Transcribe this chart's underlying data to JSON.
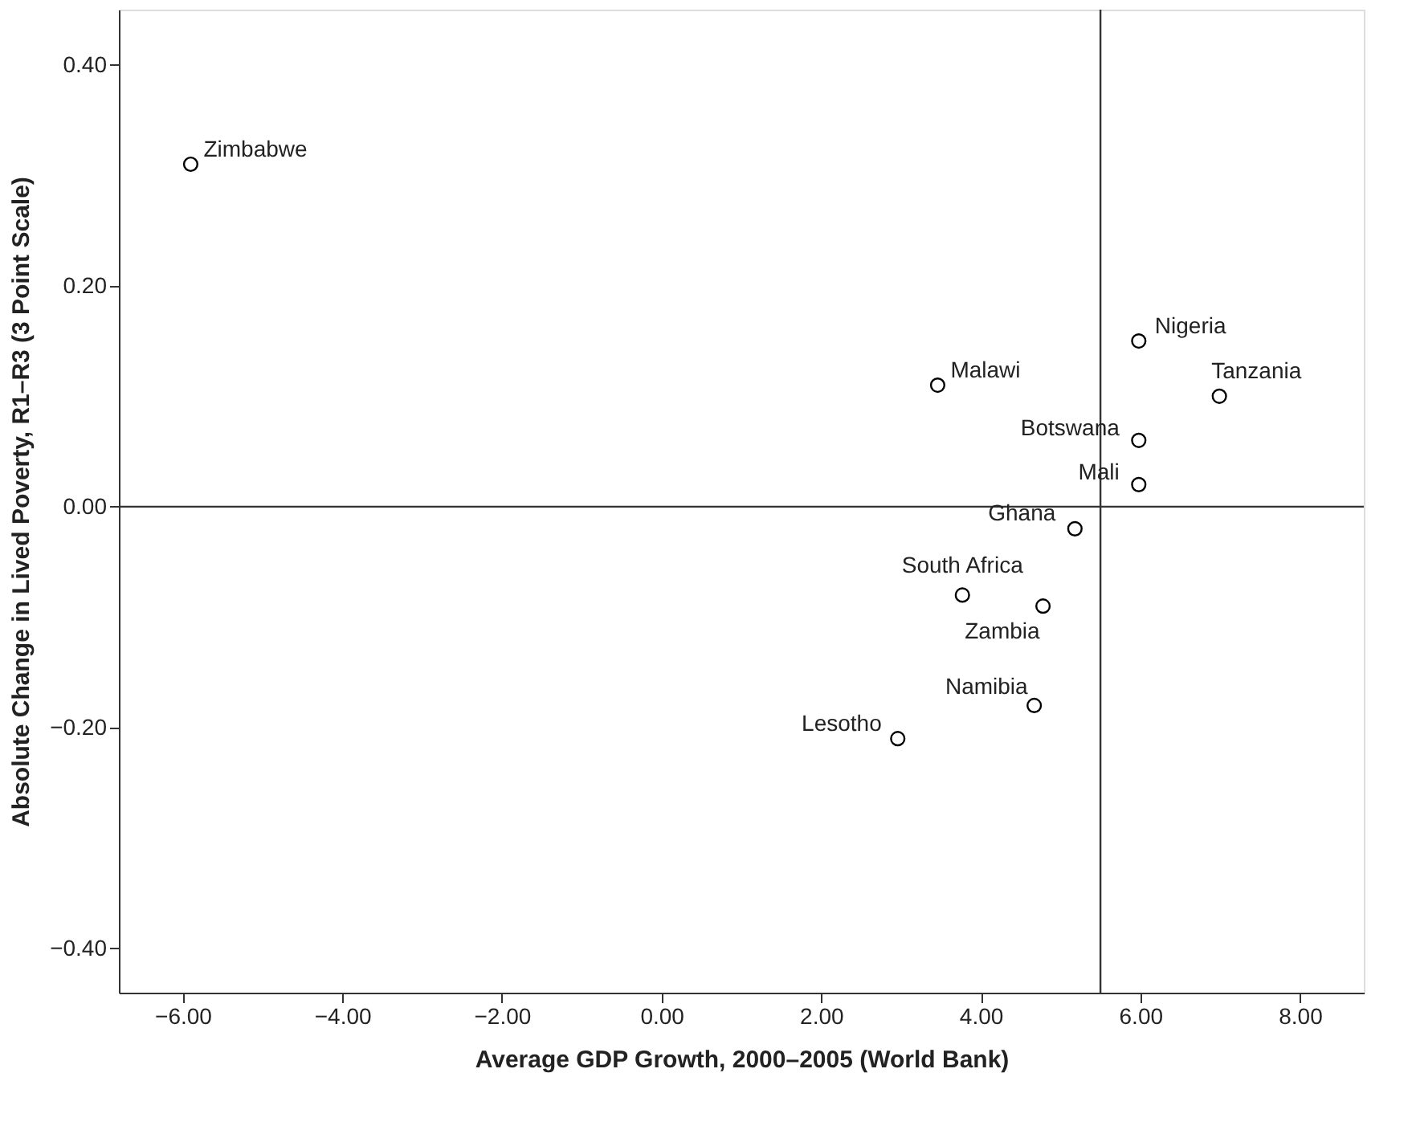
{
  "chart_data": {
    "type": "scatter",
    "xlabel": "Average GDP Growth, 2000–2005 (World Bank)",
    "ylabel": "Absolute Change in Lived Poverty, R1–R3 (3 Point Scale)",
    "x": [
      -5.9,
      3.46,
      5.98,
      6.99,
      5.98,
      5.98,
      5.18,
      3.77,
      4.78,
      4.67,
      2.96
    ],
    "series": [
      {
        "color": "#000000",
        "values": [
          0.31,
          0.11,
          0.15,
          0.1,
          0.06,
          0.02,
          -0.02,
          -0.08,
          -0.09,
          -0.18,
          -0.21
        ]
      }
    ],
    "marker": "circle",
    "xlim": [
      -6.8,
      8.8
    ],
    "ylim": [
      -0.44,
      0.45
    ],
    "xticks": [
      {
        "value": -6,
        "label": "−6.00"
      },
      {
        "value": -4,
        "label": "−4.00"
      },
      {
        "value": -2,
        "label": "−2.00"
      },
      {
        "value": 0,
        "label": "0.00"
      },
      {
        "value": 2,
        "label": "2.00"
      },
      {
        "value": 4,
        "label": "4.00"
      },
      {
        "value": 6,
        "label": "6.00"
      },
      {
        "value": 8,
        "label": "8.00"
      }
    ],
    "yticks": [
      {
        "value": -0.4,
        "label": "−0.40"
      },
      {
        "value": -0.2,
        "label": "−0.20"
      },
      {
        "value": 0,
        "label": "0.00"
      },
      {
        "value": 0.2,
        "label": "0.20"
      },
      {
        "value": 0.4,
        "label": "0.40"
      }
    ],
    "ref_lines": [
      {
        "axis": "x",
        "value": 5.5
      },
      {
        "axis": "y",
        "value": 0
      }
    ],
    "annotations": [
      {
        "text": "Zimbabwe",
        "x": -5.9,
        "y": 0.31
      },
      {
        "text": "Malawi",
        "x": 3.46,
        "y": 0.11
      },
      {
        "text": "Nigeria",
        "x": 5.98,
        "y": 0.15
      },
      {
        "text": "Tanzania",
        "x": 6.99,
        "y": 0.1
      },
      {
        "text": "Botswana",
        "x": 5.98,
        "y": 0.06
      },
      {
        "text": "Mali",
        "x": 5.98,
        "y": 0.02
      },
      {
        "text": "Ghana",
        "x": 5.18,
        "y": -0.02
      },
      {
        "text": "South Africa",
        "x": 3.77,
        "y": -0.08
      },
      {
        "text": "Zambia",
        "x": 4.78,
        "y": -0.09
      },
      {
        "text": "Namibia",
        "x": 4.67,
        "y": -0.18
      },
      {
        "text": "Lesotho",
        "x": 2.96,
        "y": -0.21
      }
    ],
    "grid": false
  }
}
